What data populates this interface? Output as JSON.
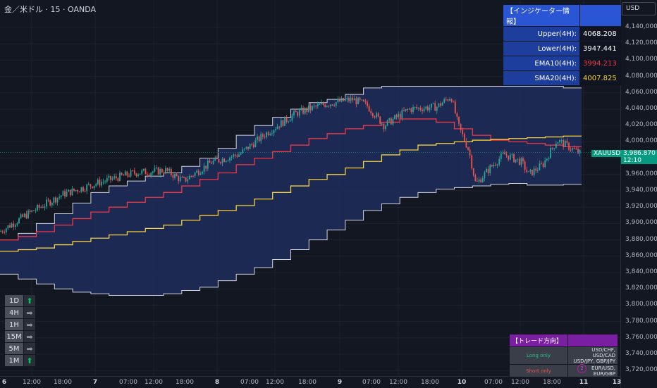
{
  "header": {
    "title": "金／米ドル · 15 · OANDA"
  },
  "currency": "USD",
  "symbol": {
    "name": "XAUUSD",
    "price": "3,986.870",
    "countdown": "12:10"
  },
  "colors": {
    "upper": "#d1d4dc",
    "band_fill": "#1f2d5a",
    "ema": "#f23645",
    "sma": "#f5d142",
    "up": "#26a69a",
    "down": "#ef5350",
    "accent": "#089981"
  },
  "price_ticks": [
    "4,140,000",
    "4,120,000",
    "4,100,000",
    "4,080,000",
    "4,060,000",
    "4,040,000",
    "4,020,000",
    "4,000,000",
    "3,980,000",
    "3,960,000",
    "3,940,000",
    "3,920,000",
    "3,900,000",
    "3,880,000",
    "3,860,000",
    "3,840,000",
    "3,820,000",
    "3,800,000",
    "3,780,000",
    "3,760,000",
    "3,740,000",
    "3,720,000"
  ],
  "time_labels": [
    {
      "t": "6",
      "bold": true
    },
    {
      "t": "12:00"
    },
    {
      "t": "18:00"
    },
    {
      "t": "7",
      "bold": true
    },
    {
      "t": "07:00"
    },
    {
      "t": "12:00"
    },
    {
      "t": "18:00"
    },
    {
      "t": "8",
      "bold": true
    },
    {
      "t": "07:00"
    },
    {
      "t": "12:00"
    },
    {
      "t": "18:00"
    },
    {
      "t": "9",
      "bold": true
    },
    {
      "t": "07:00"
    },
    {
      "t": "12:00"
    },
    {
      "t": "18:00"
    },
    {
      "t": "10",
      "bold": true
    },
    {
      "t": "07:00"
    },
    {
      "t": "12:00"
    },
    {
      "t": "18:00"
    },
    {
      "t": "11",
      "bold": true
    },
    {
      "t": "13",
      "bold": true
    }
  ],
  "info_table": {
    "title": "【インジケーター情報】",
    "rows": [
      {
        "label": "Upper(4H):",
        "value": "4068.208",
        "color": "#ffffff"
      },
      {
        "label": "Lower(4H):",
        "value": "3947.441",
        "color": "#ffffff"
      },
      {
        "label": "EMA10(4H):",
        "value": "3994.213",
        "color": "#f23645"
      },
      {
        "label": "SMA20(4H):",
        "value": "4007.825",
        "color": "#f5d142"
      }
    ]
  },
  "timeframes": [
    {
      "tf": "1D",
      "arrow": "⬆",
      "color": "#00c853"
    },
    {
      "tf": "4H",
      "arrow": "➡",
      "color": "#9598a1"
    },
    {
      "tf": "1H",
      "arrow": "➡",
      "color": "#9598a1"
    },
    {
      "tf": "15M",
      "arrow": "➡",
      "color": "#9598a1"
    },
    {
      "tf": "5M",
      "arrow": "➡",
      "color": "#9598a1"
    },
    {
      "tf": "1M",
      "arrow": "⬆",
      "color": "#00c853"
    }
  ],
  "trade_table": {
    "title": "【トレード方向】",
    "long_label": "Long only",
    "long_pairs": "USD/CHF, USD/CAD\nUSD/JPY, GBP/JPY",
    "short_label": "Short only",
    "short_pairs": "EUR/USD, EUR/GBP"
  },
  "badge": "2"
}
